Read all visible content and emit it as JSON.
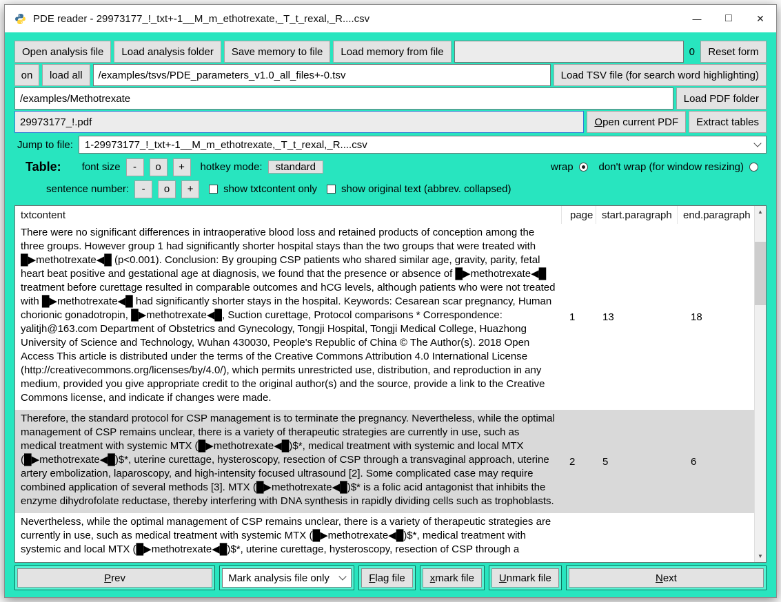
{
  "window": {
    "title": "PDE reader - 29973177_!_txt+-1__M_m_ethotrexate,_T_t_rexal,_R....csv",
    "icons": {
      "minimize": "—",
      "maximize": "□",
      "close": "✕",
      "scroll_up": "▲",
      "scroll_down": "▼"
    }
  },
  "toolbar1": {
    "open_analysis_file": "Open analysis file",
    "load_analysis_folder": "Load analysis folder",
    "save_memory_to_file": "Save memory to file",
    "load_memory_from_file": "Load memory from file",
    "memory_file_value": "",
    "counter": "0",
    "reset_form": "Reset form"
  },
  "toolbar2": {
    "on": "on",
    "load_all": "load all",
    "tsv_path": "/examples/tsvs/PDE_parameters_v1.0_all_files+-0.tsv",
    "load_tsv": "Load TSV file (for search word highlighting)"
  },
  "toolbar3": {
    "pdf_folder": "/examples/Methotrexate",
    "load_pdf_folder": "Load PDF folder"
  },
  "toolbar4": {
    "current_pdf": "29973177_!.pdf",
    "open_current_pdf": "Open current PDF",
    "extract_tables": "Extract tables"
  },
  "jump": {
    "label": "Jump to file:",
    "value": "1-29973177_!_txt+-1__M_m_ethotrexate,_T_t_rexal,_R....csv"
  },
  "table_controls": {
    "title": "Table:",
    "font_size_label": "font size",
    "minus": "-",
    "reset": "o",
    "plus": "+",
    "hotkey_label": "hotkey mode:",
    "hotkey_value": "standard",
    "wrap_label": "wrap",
    "dont_wrap_label": "don't wrap (for window resizing)",
    "sentence_label": "sentence number:",
    "show_txtcontent_label": "show txtcontent only",
    "show_original_label": "show original text (abbrev. collapsed)"
  },
  "table": {
    "headers": [
      "txtcontent",
      "page",
      "start.paragraph",
      "end.paragraph"
    ],
    "rows": [
      {
        "txtcontent": "There were no significant differences in intraoperative blood loss and retained products of conception among the three groups. However group 1 had significantly shorter hospital stays than the two groups that were treated with █▶methotrexate◀█ (p<0.001). Conclusion: By grouping CSP patients who shared similar age, gravity, parity, fetal heart beat positive and gestational age at diagnosis, we found that the presence or absence of █▶methotrexate◀█ treatment before curettage resulted in comparable outcomes and hCG levels, although patients who were not treated with █▶methotrexate◀█ had significantly shorter stays in the hospital. Keywords: Cesarean scar pregnancy, Human chorionic gonadotropin, █▶methotrexate◀█, Suction curettage, Protocol comparisons  * Correspondence: yalitjh@163.com Department of Obstetrics and Gynecology, Tongji Hospital, Tongji Medical College, Huazhong University of Science and Technology, Wuhan 430030, People's Republic of China © The Author(s). 2018 Open Access This article is distributed under the terms of the Creative Commons Attribution 4.0 International License (http://creativecommons.org/licenses/by/4.0/), which permits unrestricted use, distribution, and reproduction in any medium, provided you give appropriate credit to the original author(s) and the source, provide a link to the Creative Commons license, and indicate if changes were made.",
        "page": "1",
        "start_paragraph": "13",
        "end_paragraph": "18"
      },
      {
        "txtcontent": "Therefore, the standard protocol for CSP management is to terminate the pregnancy. Nevertheless, while the optimal management of CSP remains unclear, there is a variety of therapeutic strategies are currently in use, such as medical treatment with systemic MTX (█▶methotrexate◀█)$*, medical treatment with systemic and local MTX (█▶methotrexate◀█)$*, uterine curettage, hysteroscopy, resection of CSP through a transvaginal approach, uterine artery embolization, laparoscopy, and high-intensity focused ultrasound [2]. Some complicated case may require combined application of several methods [3]. MTX (█▶methotrexate◀█)$* is a folic acid antagonist that inhibits the enzyme dihydrofolate reductase, thereby interfering with DNA synthesis in rapidly dividing cells such as trophoblasts.",
        "page": "2",
        "start_paragraph": "5",
        "end_paragraph": "6"
      },
      {
        "txtcontent": "Nevertheless, while the optimal management of CSP remains unclear, there is a variety of therapeutic strategies are currently in use, such as medical treatment with systemic MTX (█▶methotrexate◀█)$*, medical treatment with systemic and local MTX (█▶methotrexate◀█)$*, uterine curettage, hysteroscopy, resection of CSP through a",
        "page": "",
        "start_paragraph": "",
        "end_paragraph": ""
      }
    ]
  },
  "footer": {
    "prev": "Prev",
    "mark_mode": "Mark analysis file only",
    "flag_file": "Flag file",
    "x_mark_file": "x mark file",
    "unmark_file": "Unmark file",
    "next": "Next"
  },
  "colors": {
    "background_teal": "#28E5BF",
    "footer_frame_highlight": "#55F4D5",
    "selected_row": "#D9D9D9",
    "button_face": "#E3E3E3"
  }
}
